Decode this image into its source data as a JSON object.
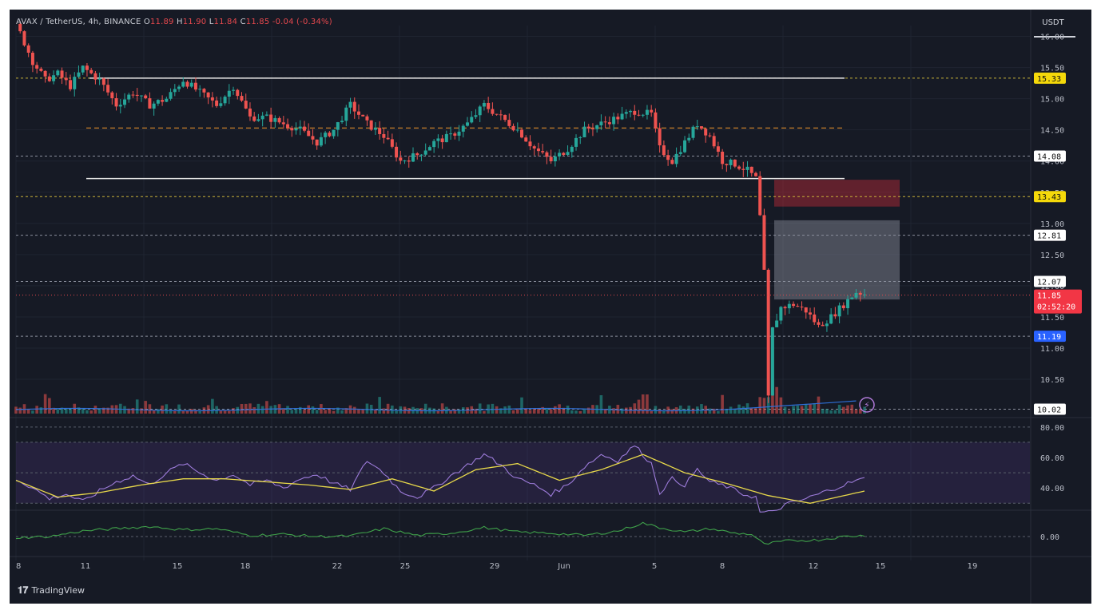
{
  "header": {
    "symbol": "AVAX / TetherUS, 4h, BINANCE",
    "o_label": "O",
    "o_value": "11.89",
    "h_label": "H",
    "h_value": "11.90",
    "l_label": "L",
    "l_value": "11.84",
    "c_label": "C",
    "c_value": "11.85",
    "change": "-0.04 (-0.34%)"
  },
  "currency_label": "USDT",
  "branding": "TradingView",
  "colors": {
    "background": "#161a25",
    "up": "#26a69a",
    "down": "#ef5350",
    "yellow_tag": "#f5d90a",
    "blue_tag": "#2962ff",
    "red_tag": "#f23645",
    "rsi_line": "#9c7bd9",
    "rsi_ma": "#e8d94a",
    "osc_line": "#3fa14a"
  },
  "chart_data": [
    {
      "type": "candlestick",
      "title": "AVAX / TetherUS, 4h, BINANCE",
      "ylim": [
        9.95,
        16.25
      ],
      "y_ticks": [
        "16.00",
        "15.50",
        "15.00",
        "14.50",
        "14.00",
        "13.50",
        "13.00",
        "12.50",
        "12.00",
        "11.50",
        "11.00",
        "10.50"
      ],
      "x_ticks": [
        "8",
        "11",
        "15",
        "18",
        "22",
        "25",
        "29",
        "Jun",
        "5",
        "8",
        "12",
        "15",
        "19"
      ],
      "price_path": [
        [
          0,
          16.2
        ],
        [
          2,
          15.9
        ],
        [
          4,
          15.6
        ],
        [
          7,
          15.3
        ],
        [
          10,
          15.4
        ],
        [
          13,
          15.2
        ],
        [
          16,
          15.5
        ],
        [
          20,
          15.3
        ],
        [
          24,
          14.9
        ],
        [
          28,
          15.1
        ],
        [
          32,
          14.9
        ],
        [
          36,
          15.0
        ],
        [
          40,
          15.3
        ],
        [
          44,
          15.1
        ],
        [
          48,
          14.9
        ],
        [
          52,
          15.2
        ],
        [
          56,
          14.7
        ],
        [
          60,
          14.7
        ],
        [
          64,
          14.6
        ],
        [
          68,
          14.5
        ],
        [
          72,
          14.3
        ],
        [
          76,
          14.5
        ],
        [
          80,
          14.9
        ],
        [
          84,
          14.6
        ],
        [
          88,
          14.4
        ],
        [
          92,
          14.0
        ],
        [
          96,
          14.1
        ],
        [
          100,
          14.3
        ],
        [
          104,
          14.4
        ],
        [
          108,
          14.6
        ],
        [
          112,
          14.9
        ],
        [
          116,
          14.7
        ],
        [
          120,
          14.5
        ],
        [
          124,
          14.2
        ],
        [
          128,
          14.0
        ],
        [
          132,
          14.2
        ],
        [
          136,
          14.5
        ],
        [
          140,
          14.6
        ],
        [
          144,
          14.7
        ],
        [
          148,
          14.8
        ],
        [
          152,
          14.75
        ],
        [
          154,
          14.2
        ],
        [
          157,
          14.0
        ],
        [
          160,
          14.3
        ],
        [
          163,
          14.6
        ],
        [
          166,
          14.4
        ],
        [
          169,
          14.0
        ],
        [
          172,
          13.95
        ],
        [
          175,
          13.85
        ],
        [
          177,
          13.72
        ],
        [
          178,
          13.1
        ],
        [
          179,
          12.2
        ],
        [
          180,
          10.2
        ],
        [
          181,
          11.3
        ],
        [
          183,
          11.65
        ],
        [
          186,
          11.7
        ],
        [
          189,
          11.6
        ],
        [
          192,
          11.35
        ],
        [
          195,
          11.5
        ],
        [
          198,
          11.7
        ],
        [
          201,
          11.9
        ],
        [
          203,
          11.87
        ]
      ],
      "levels": [
        {
          "value": 15.33,
          "label": "15.33",
          "style": "yellow"
        },
        {
          "value": 14.08,
          "label": "14.08",
          "style": "white"
        },
        {
          "value": 13.43,
          "label": "13.43",
          "style": "yellow"
        },
        {
          "value": 12.81,
          "label": "12.81",
          "style": "white"
        },
        {
          "value": 12.07,
          "label": "12.07",
          "style": "white"
        },
        {
          "value": 11.85,
          "label": "11.85",
          "style": "red",
          "countdown": "02:52:20"
        },
        {
          "value": 11.19,
          "label": "11.19",
          "style": "blue"
        },
        {
          "value": 10.02,
          "label": "10.02",
          "style": "white"
        }
      ],
      "range_top": 15.33,
      "range_mid": 14.53,
      "range_bottom": 13.72,
      "zones": [
        {
          "from": 13.27,
          "to": 13.7,
          "color": "red"
        },
        {
          "from": 11.78,
          "to": 13.05,
          "color": "grey"
        }
      ]
    },
    {
      "type": "line",
      "title": "",
      "ylim": [
        27,
        82
      ],
      "y_ticks": [
        "80.00",
        "60.00",
        "40.00"
      ],
      "band": [
        30,
        70
      ],
      "rsi": [
        [
          0,
          46
        ],
        [
          4,
          40
        ],
        [
          8,
          33
        ],
        [
          12,
          36
        ],
        [
          16,
          31
        ],
        [
          20,
          38
        ],
        [
          24,
          44
        ],
        [
          28,
          48
        ],
        [
          32,
          42
        ],
        [
          36,
          50
        ],
        [
          40,
          56
        ],
        [
          44,
          50
        ],
        [
          48,
          45
        ],
        [
          52,
          49
        ],
        [
          56,
          42
        ],
        [
          60,
          45
        ],
        [
          64,
          40
        ],
        [
          68,
          46
        ],
        [
          72,
          49
        ],
        [
          76,
          43
        ],
        [
          80,
          39
        ],
        [
          84,
          58
        ],
        [
          88,
          50
        ],
        [
          92,
          38
        ],
        [
          96,
          34
        ],
        [
          100,
          40
        ],
        [
          104,
          48
        ],
        [
          108,
          55
        ],
        [
          112,
          62
        ],
        [
          116,
          55
        ],
        [
          120,
          46
        ],
        [
          124,
          42
        ],
        [
          128,
          36
        ],
        [
          132,
          42
        ],
        [
          136,
          54
        ],
        [
          140,
          62
        ],
        [
          144,
          58
        ],
        [
          148,
          68
        ],
        [
          152,
          56
        ],
        [
          154,
          37
        ],
        [
          157,
          46
        ],
        [
          160,
          42
        ],
        [
          163,
          52
        ],
        [
          166,
          44
        ],
        [
          170,
          41
        ],
        [
          174,
          36
        ],
        [
          177,
          34
        ],
        [
          178,
          24
        ],
        [
          181,
          24
        ],
        [
          184,
          29
        ],
        [
          188,
          32
        ],
        [
          192,
          36
        ],
        [
          196,
          40
        ],
        [
          200,
          44
        ],
        [
          203,
          46
        ]
      ],
      "rsi_ma": [
        [
          0,
          45
        ],
        [
          10,
          34
        ],
        [
          20,
          37
        ],
        [
          30,
          42
        ],
        [
          40,
          46
        ],
        [
          50,
          46
        ],
        [
          60,
          44
        ],
        [
          70,
          42
        ],
        [
          80,
          39
        ],
        [
          90,
          46
        ],
        [
          100,
          38
        ],
        [
          110,
          52
        ],
        [
          120,
          56
        ],
        [
          130,
          45
        ],
        [
          140,
          52
        ],
        [
          150,
          62
        ],
        [
          160,
          50
        ],
        [
          170,
          43
        ],
        [
          180,
          35
        ],
        [
          190,
          30
        ],
        [
          203,
          38
        ]
      ]
    },
    {
      "type": "line",
      "title": "",
      "y_ticks": [
        "0.00"
      ],
      "values": [
        [
          0,
          -0.05
        ],
        [
          8,
          0.0
        ],
        [
          16,
          0.25
        ],
        [
          24,
          0.35
        ],
        [
          32,
          0.45
        ],
        [
          40,
          0.3
        ],
        [
          48,
          0.35
        ],
        [
          56,
          0.05
        ],
        [
          64,
          0.1
        ],
        [
          72,
          0.0
        ],
        [
          80,
          0.02
        ],
        [
          88,
          0.35
        ],
        [
          96,
          0.05
        ],
        [
          104,
          0.15
        ],
        [
          112,
          0.4
        ],
        [
          120,
          0.2
        ],
        [
          128,
          0.15
        ],
        [
          136,
          0.05
        ],
        [
          144,
          0.25
        ],
        [
          150,
          0.6
        ],
        [
          154,
          0.4
        ],
        [
          160,
          0.2
        ],
        [
          166,
          0.35
        ],
        [
          172,
          0.15
        ],
        [
          176,
          0.1
        ],
        [
          179,
          -0.35
        ],
        [
          184,
          -0.2
        ],
        [
          192,
          -0.15
        ],
        [
          198,
          0.0
        ],
        [
          203,
          0.05
        ]
      ]
    }
  ]
}
